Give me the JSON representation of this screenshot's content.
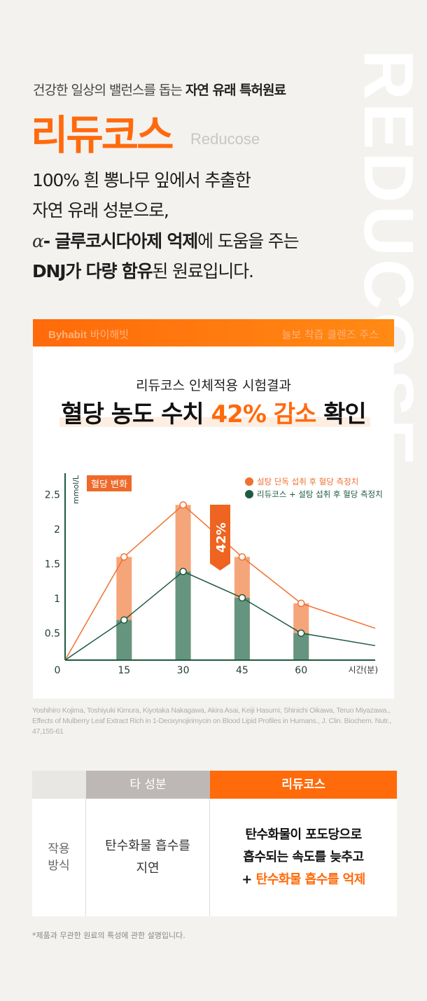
{
  "watermark": "REDUCOSE",
  "tagline": {
    "normal": "건강한 일상의 밸런스를 돕는 ",
    "bold": "자연 유래 특허원료"
  },
  "title": "리듀코스",
  "title_en": "Reducose",
  "body": {
    "line1": "100% 흰 뽕나무 잎에서 추출한",
    "line2": "자연 유래 성분으로,",
    "line3_alpha": "α",
    "line3_bold": "- 글루코시다아제 억제",
    "line3_rest": "에 도움을 주는",
    "line4_bold1": "DNJ가 다량 함유",
    "line4_rest": "된 원료입니다."
  },
  "card": {
    "brand_bold": "Byhabit",
    "brand_kr": " 바이해빗",
    "course": "늘보 착즙 클렌즈 주스",
    "subtitle": "리듀코스 인체적용 시험결과",
    "headline_pre": "혈당 농도 수치 ",
    "headline_accent": "42% 감소",
    "headline_post": " 확인"
  },
  "chart_data": {
    "type": "bar+line",
    "tag": "혈당 변화",
    "ylabel": "mmol/L",
    "xlabel": "시간(분)",
    "x": [
      0,
      15,
      30,
      45,
      60
    ],
    "yticks": [
      "0.5",
      "1",
      "1.5",
      "2",
      "2.5"
    ],
    "xticks": [
      "0",
      "15",
      "30",
      "45",
      "60"
    ],
    "ylim": [
      0,
      2.7
    ],
    "series": [
      {
        "name": "설탕 단독 섭취 후 혈당 측정치",
        "color": "#f07030",
        "bar_color": "#f5a57a",
        "values": [
          0,
          1.6,
          2.35,
          1.6,
          0.93
        ],
        "tail_value": 0.57
      },
      {
        "name": "리듀코스 + 설탕 섭취 후 혈당 측정치",
        "color": "#1d5a40",
        "bar_color": "#66957f",
        "values": [
          0,
          0.69,
          1.39,
          1.01,
          0.5
        ],
        "tail_value": 0.32
      }
    ],
    "annotation": "42%",
    "legend": "top-right"
  },
  "citation": "Yoshihiro Kojima, Toshiyuki Kimura, Kiyotaka Nakagawa, Akira Asai, Keiji Hasumi, Shinichi Oikawa, Teruo Miyazawa., Effects of Mulberry Leaf Extract Rich in 1-Deoxynojirimycin on Blood Lipid Profiles in Humans., J. Clin. Biochem. Nutr., 47,155-61",
  "table": {
    "col_other": "타 성분",
    "col_reducose": "리듀코스",
    "row_label_1": "작용",
    "row_label_2": "방식",
    "other_1": "탄수화물 흡수를",
    "other_2": "지연",
    "red_1": "탄수화물이 포도당으로",
    "red_2": "흡수되는 속도를 늦추고",
    "red_3_plus": "+ ",
    "red_3_accent": "탄수화물 흡수를 억제"
  },
  "note": "*제품과 무관한 원료의 특성에 관한 설명입니다."
}
